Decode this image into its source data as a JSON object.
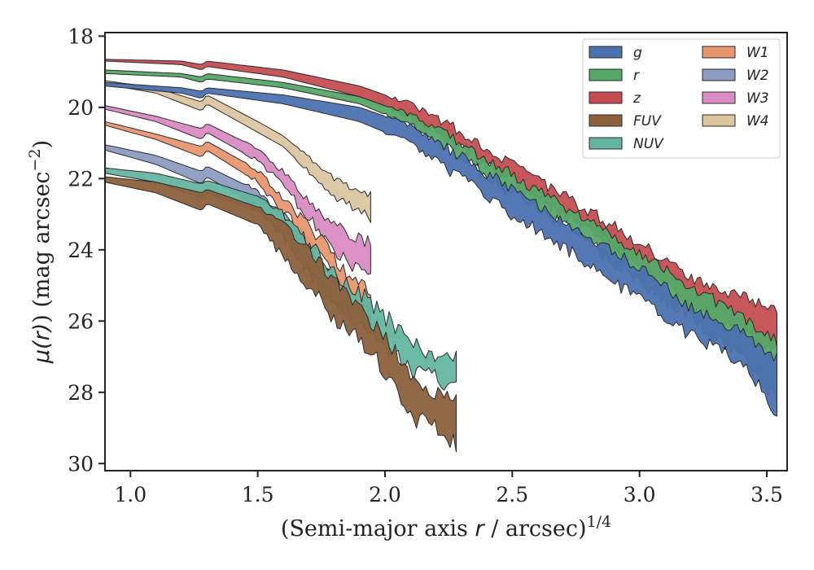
{
  "chart_data": {
    "type": "area",
    "xlabel_pre": "(Semi-major axis ",
    "xlabel_var": "r",
    "xlabel_post": " / arcsec)",
    "xlabel_sup": "1/4",
    "ylabel_pre": "μ(",
    "ylabel_var": "r",
    "ylabel_post": ") (mag arcsec",
    "ylabel_sup": "−2",
    "ylabel_close": ")",
    "xlim": [
      0.9,
      3.58
    ],
    "ylim": [
      30.2,
      17.9
    ],
    "y_inverted": true,
    "xticks": [
      1.0,
      1.5,
      2.0,
      2.5,
      3.0,
      3.5
    ],
    "xtick_labels": [
      "1.0",
      "1.5",
      "2.0",
      "2.5",
      "3.0",
      "3.5"
    ],
    "yticks": [
      18,
      20,
      22,
      24,
      26,
      28,
      30
    ],
    "ytick_labels": [
      "18",
      "20",
      "22",
      "24",
      "26",
      "28",
      "30"
    ],
    "grid": false,
    "legend_position": "top-right",
    "legend_columns": 2,
    "series": [
      {
        "name": "g",
        "color": "#4c72b0",
        "x_start": 0.9,
        "x_end": 3.55,
        "noise_start": 2.0,
        "noise": 0.35,
        "upper": [
          [
            0.9,
            19.3
          ],
          [
            1.2,
            19.45
          ],
          [
            1.28,
            19.55
          ],
          [
            1.3,
            19.45
          ],
          [
            1.6,
            19.65
          ],
          [
            1.9,
            20.0
          ],
          [
            2.1,
            20.5
          ],
          [
            2.3,
            21.4
          ],
          [
            2.5,
            22.3
          ],
          [
            2.8,
            23.6
          ],
          [
            3.0,
            24.5
          ],
          [
            3.2,
            25.6
          ],
          [
            3.4,
            26.3
          ],
          [
            3.55,
            27.1
          ]
        ],
        "lower": [
          [
            0.9,
            19.4
          ],
          [
            1.2,
            19.6
          ],
          [
            1.28,
            19.75
          ],
          [
            1.3,
            19.6
          ],
          [
            1.6,
            19.9
          ],
          [
            1.9,
            20.4
          ],
          [
            2.1,
            21.0
          ],
          [
            2.3,
            22.0
          ],
          [
            2.5,
            23.0
          ],
          [
            2.8,
            24.4
          ],
          [
            3.0,
            25.4
          ],
          [
            3.2,
            26.4
          ],
          [
            3.4,
            27.1
          ],
          [
            3.55,
            28.7
          ]
        ]
      },
      {
        "name": "r",
        "color": "#55a868",
        "x_start": 0.9,
        "x_end": 3.55,
        "noise_start": 2.0,
        "noise": 0.35,
        "upper": [
          [
            0.9,
            18.95
          ],
          [
            1.2,
            19.05
          ],
          [
            1.28,
            19.15
          ],
          [
            1.3,
            19.05
          ],
          [
            1.6,
            19.3
          ],
          [
            1.9,
            19.7
          ],
          [
            2.1,
            20.2
          ],
          [
            2.3,
            21.0
          ],
          [
            2.5,
            21.9
          ],
          [
            2.8,
            23.2
          ],
          [
            3.0,
            24.1
          ],
          [
            3.2,
            25.0
          ],
          [
            3.4,
            25.9
          ],
          [
            3.55,
            26.6
          ]
        ],
        "lower": [
          [
            0.9,
            19.05
          ],
          [
            1.2,
            19.15
          ],
          [
            1.28,
            19.3
          ],
          [
            1.3,
            19.2
          ],
          [
            1.6,
            19.45
          ],
          [
            1.9,
            19.9
          ],
          [
            2.1,
            20.5
          ],
          [
            2.3,
            21.4
          ],
          [
            2.5,
            22.4
          ],
          [
            2.8,
            23.8
          ],
          [
            3.0,
            24.9
          ],
          [
            3.2,
            25.9
          ],
          [
            3.4,
            27.0
          ],
          [
            3.55,
            28.3
          ]
        ]
      },
      {
        "name": "z",
        "color": "#c44e52",
        "x_start": 0.9,
        "x_end": 3.55,
        "noise_start": 2.0,
        "noise": 0.35,
        "upper": [
          [
            0.9,
            18.65
          ],
          [
            1.2,
            18.7
          ],
          [
            1.28,
            18.8
          ],
          [
            1.3,
            18.7
          ],
          [
            1.6,
            18.95
          ],
          [
            1.9,
            19.4
          ],
          [
            2.1,
            19.9
          ],
          [
            2.3,
            20.7
          ],
          [
            2.5,
            21.6
          ],
          [
            2.8,
            22.9
          ],
          [
            3.0,
            23.8
          ],
          [
            3.2,
            24.8
          ],
          [
            3.4,
            25.3
          ],
          [
            3.55,
            25.7
          ]
        ],
        "lower": [
          [
            0.9,
            18.7
          ],
          [
            1.2,
            18.8
          ],
          [
            1.28,
            18.95
          ],
          [
            1.3,
            18.85
          ],
          [
            1.6,
            19.15
          ],
          [
            1.9,
            19.7
          ],
          [
            2.1,
            20.3
          ],
          [
            2.3,
            21.2
          ],
          [
            2.5,
            22.1
          ],
          [
            2.8,
            23.5
          ],
          [
            3.0,
            24.5
          ],
          [
            3.2,
            25.6
          ],
          [
            3.4,
            26.3
          ],
          [
            3.55,
            27.0
          ]
        ]
      },
      {
        "name": "FUV",
        "color": "#8c613c",
        "x_start": 0.9,
        "x_end": 2.29,
        "noise_start": 1.5,
        "noise": 0.5,
        "upper": [
          [
            0.9,
            21.95
          ],
          [
            1.1,
            22.1
          ],
          [
            1.28,
            22.4
          ],
          [
            1.3,
            22.3
          ],
          [
            1.5,
            22.8
          ],
          [
            1.6,
            23.3
          ],
          [
            1.8,
            24.8
          ],
          [
            1.95,
            26.0
          ],
          [
            2.1,
            27.5
          ],
          [
            2.2,
            28.0
          ],
          [
            2.29,
            28.1
          ]
        ],
        "lower": [
          [
            0.9,
            22.1
          ],
          [
            1.1,
            22.4
          ],
          [
            1.28,
            22.9
          ],
          [
            1.3,
            22.7
          ],
          [
            1.5,
            23.3
          ],
          [
            1.6,
            24.2
          ],
          [
            1.8,
            25.9
          ],
          [
            1.95,
            26.9
          ],
          [
            2.1,
            28.7
          ],
          [
            2.2,
            29.0
          ],
          [
            2.29,
            29.6
          ]
        ]
      },
      {
        "name": "NUV",
        "color": "#64b5a0",
        "x_start": 0.9,
        "x_end": 2.29,
        "noise_start": 1.5,
        "noise": 0.5,
        "upper": [
          [
            0.9,
            21.7
          ],
          [
            1.1,
            21.85
          ],
          [
            1.28,
            22.15
          ],
          [
            1.3,
            22.05
          ],
          [
            1.5,
            22.5
          ],
          [
            1.6,
            23.0
          ],
          [
            1.8,
            24.6
          ],
          [
            1.95,
            25.5
          ],
          [
            2.1,
            26.6
          ],
          [
            2.2,
            27.1
          ],
          [
            2.29,
            26.9
          ]
        ],
        "lower": [
          [
            0.9,
            21.85
          ],
          [
            1.1,
            22.1
          ],
          [
            1.28,
            22.55
          ],
          [
            1.3,
            22.4
          ],
          [
            1.5,
            22.9
          ],
          [
            1.6,
            23.6
          ],
          [
            1.8,
            25.4
          ],
          [
            1.95,
            26.4
          ],
          [
            2.1,
            27.4
          ],
          [
            2.2,
            27.6
          ],
          [
            2.29,
            27.8
          ]
        ]
      },
      {
        "name": "W1",
        "color": "#e8966f",
        "x_start": 0.9,
        "x_end": 1.95,
        "noise_start": 1.45,
        "noise": 0.45,
        "upper": [
          [
            0.9,
            20.4
          ],
          [
            1.1,
            20.75
          ],
          [
            1.28,
            21.1
          ],
          [
            1.3,
            20.95
          ],
          [
            1.5,
            21.75
          ],
          [
            1.6,
            22.5
          ],
          [
            1.7,
            23.3
          ],
          [
            1.8,
            24.2
          ],
          [
            1.9,
            25.0
          ],
          [
            1.95,
            25.2
          ]
        ],
        "lower": [
          [
            0.9,
            20.5
          ],
          [
            1.1,
            20.9
          ],
          [
            1.28,
            21.4
          ],
          [
            1.3,
            21.2
          ],
          [
            1.5,
            22.1
          ],
          [
            1.6,
            22.9
          ],
          [
            1.7,
            23.8
          ],
          [
            1.8,
            24.8
          ],
          [
            1.9,
            25.6
          ],
          [
            1.95,
            25.9
          ]
        ]
      },
      {
        "name": "W2",
        "color": "#8c9cc1",
        "x_start": 0.9,
        "x_end": 1.95,
        "noise_start": 1.45,
        "noise": 0.45,
        "upper": [
          [
            0.9,
            21.05
          ],
          [
            1.1,
            21.35
          ],
          [
            1.28,
            21.8
          ],
          [
            1.3,
            21.65
          ],
          [
            1.5,
            22.35
          ],
          [
            1.6,
            23.0
          ],
          [
            1.7,
            23.8
          ],
          [
            1.8,
            24.9
          ],
          [
            1.9,
            25.5
          ],
          [
            1.95,
            25.5
          ]
        ],
        "lower": [
          [
            0.9,
            21.2
          ],
          [
            1.1,
            21.6
          ],
          [
            1.28,
            22.15
          ],
          [
            1.3,
            21.95
          ],
          [
            1.5,
            22.8
          ],
          [
            1.6,
            23.6
          ],
          [
            1.7,
            24.6
          ],
          [
            1.8,
            25.7
          ],
          [
            1.9,
            26.1
          ],
          [
            1.95,
            26.2
          ]
        ]
      },
      {
        "name": "W3",
        "color": "#da8bc3",
        "x_start": 0.9,
        "x_end": 1.95,
        "noise_start": 1.45,
        "noise": 0.35,
        "upper": [
          [
            0.9,
            19.95
          ],
          [
            1.1,
            20.25
          ],
          [
            1.28,
            20.6
          ],
          [
            1.3,
            20.45
          ],
          [
            1.5,
            21.15
          ],
          [
            1.6,
            21.8
          ],
          [
            1.7,
            22.6
          ],
          [
            1.8,
            23.3
          ],
          [
            1.9,
            23.7
          ],
          [
            1.95,
            23.8
          ]
        ],
        "lower": [
          [
            0.9,
            20.05
          ],
          [
            1.1,
            20.4
          ],
          [
            1.28,
            20.9
          ],
          [
            1.3,
            20.7
          ],
          [
            1.5,
            21.5
          ],
          [
            1.6,
            22.2
          ],
          [
            1.7,
            23.1
          ],
          [
            1.8,
            24.0
          ],
          [
            1.9,
            24.6
          ],
          [
            1.95,
            24.8
          ]
        ]
      },
      {
        "name": "W4",
        "color": "#dbc6a0",
        "x_start": 0.9,
        "x_end": 1.95,
        "noise_start": 1.65,
        "noise": 0.3,
        "upper": [
          [
            0.9,
            19.25
          ],
          [
            1.1,
            19.45
          ],
          [
            1.28,
            19.85
          ],
          [
            1.3,
            19.65
          ],
          [
            1.5,
            20.4
          ],
          [
            1.6,
            20.8
          ],
          [
            1.7,
            21.4
          ],
          [
            1.8,
            22.0
          ],
          [
            1.9,
            22.4
          ],
          [
            1.95,
            22.4
          ]
        ],
        "lower": [
          [
            0.9,
            19.35
          ],
          [
            1.1,
            19.6
          ],
          [
            1.28,
            20.1
          ],
          [
            1.3,
            19.9
          ],
          [
            1.5,
            20.7
          ],
          [
            1.6,
            21.1
          ],
          [
            1.7,
            21.8
          ],
          [
            1.8,
            22.5
          ],
          [
            1.9,
            22.9
          ],
          [
            1.95,
            23.1
          ]
        ]
      }
    ]
  }
}
